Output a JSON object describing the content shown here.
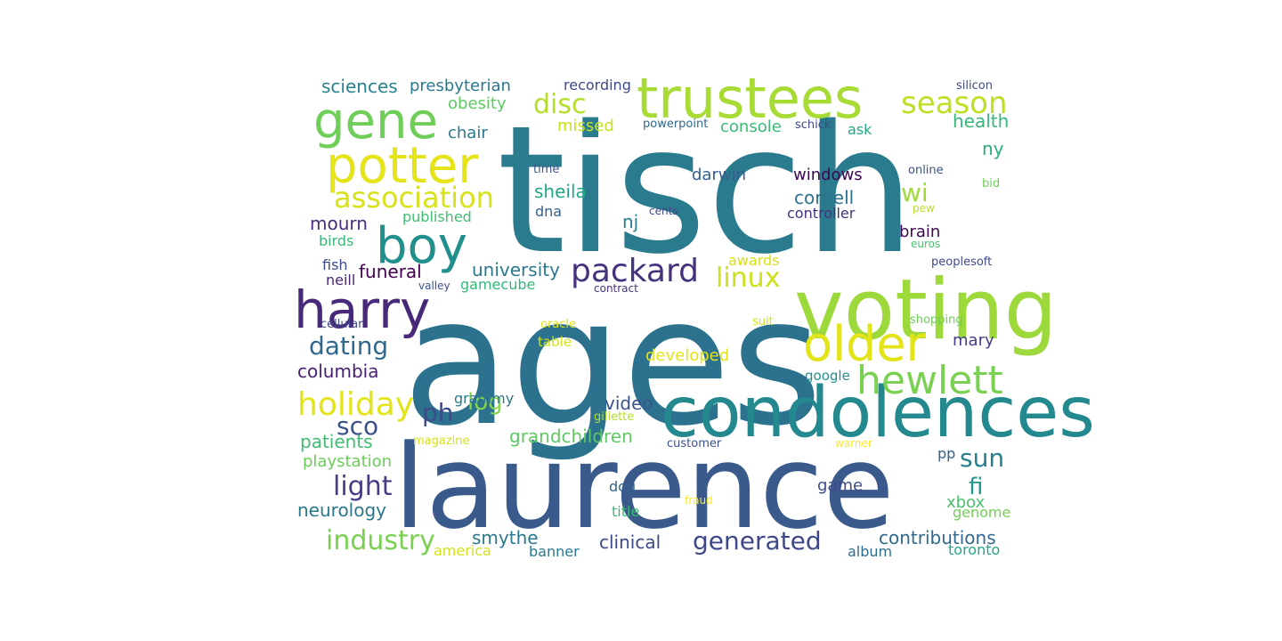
{
  "words": [
    {
      "text": "tisch",
      "color": "#2a7b8e"
    },
    {
      "text": "ages",
      "color": "#2c728e"
    },
    {
      "text": "laurence",
      "color": "#3b5a8c"
    },
    {
      "text": "voting",
      "color": "#9dd93b"
    },
    {
      "text": "condolences",
      "color": "#23898e"
    },
    {
      "text": "trustees",
      "color": "#a8db34"
    },
    {
      "text": "gene",
      "color": "#6ece58"
    },
    {
      "text": "potter",
      "color": "#e4e419"
    },
    {
      "text": "harry",
      "color": "#482878"
    },
    {
      "text": "boy",
      "color": "#21908d"
    },
    {
      "text": "older",
      "color": "#e2e418"
    },
    {
      "text": "hewlett",
      "color": "#7ad151"
    },
    {
      "text": "association",
      "color": "#d8e219"
    },
    {
      "text": "packard",
      "color": "#46337e"
    },
    {
      "text": "season",
      "color": "#bddf26"
    },
    {
      "text": "holiday",
      "color": "#e2e418"
    },
    {
      "text": "generated",
      "color": "#3f4889"
    },
    {
      "text": "industry",
      "color": "#7ad151"
    },
    {
      "text": "dating",
      "color": "#31688e"
    },
    {
      "text": "light",
      "color": "#433e85"
    },
    {
      "text": "disc",
      "color": "#b5de2b"
    },
    {
      "text": "linux",
      "color": "#cde11d"
    },
    {
      "text": "sun",
      "color": "#277f8e"
    },
    {
      "text": "sco",
      "color": "#3b528b"
    },
    {
      "text": "ph",
      "color": "#3e4a89"
    },
    {
      "text": "log",
      "color": "#86d549"
    },
    {
      "text": "wi",
      "color": "#a0da39"
    },
    {
      "text": "fi",
      "color": "#1f968b"
    },
    {
      "text": "contributions",
      "color": "#31688e"
    },
    {
      "text": "university",
      "color": "#2a788e"
    },
    {
      "text": "grandchildren",
      "color": "#5ec962"
    },
    {
      "text": "smythe",
      "color": "#2a788e"
    },
    {
      "text": "clinical",
      "color": "#3e4989"
    },
    {
      "text": "patients",
      "color": "#40bd72"
    },
    {
      "text": "neurology",
      "color": "#2a788e"
    },
    {
      "text": "mourn",
      "color": "#472d7b"
    },
    {
      "text": "columbia",
      "color": "#482173"
    },
    {
      "text": "funeral",
      "color": "#440154"
    },
    {
      "text": "sciences",
      "color": "#26828e"
    },
    {
      "text": "presbyterian",
      "color": "#2a788e"
    },
    {
      "text": "health",
      "color": "#35b779"
    },
    {
      "text": "ny",
      "color": "#29af7f"
    },
    {
      "text": "sheila",
      "color": "#22a884"
    },
    {
      "text": "cornell",
      "color": "#2c728e"
    },
    {
      "text": "windows",
      "color": "#3e0751"
    },
    {
      "text": "brain",
      "color": "#3e0751"
    },
    {
      "text": "mary",
      "color": "#433e85"
    },
    {
      "text": "video",
      "color": "#3b528b"
    },
    {
      "text": "game",
      "color": "#3e4a89"
    },
    {
      "text": "playstation",
      "color": "#6ccd5a"
    },
    {
      "text": "developed",
      "color": "#e2e418"
    },
    {
      "text": "chair",
      "color": "#2a788e"
    },
    {
      "text": "obesity",
      "color": "#5ec962"
    },
    {
      "text": "missed",
      "color": "#c8e020"
    },
    {
      "text": "console",
      "color": "#3aba76"
    },
    {
      "text": "darwin",
      "color": "#355e8d"
    },
    {
      "text": "controller",
      "color": "#46307e"
    },
    {
      "text": "nj",
      "color": "#27808e"
    },
    {
      "text": "dna",
      "color": "#33628d"
    },
    {
      "text": "published",
      "color": "#40bd72"
    },
    {
      "text": "birds",
      "color": "#3aba76"
    },
    {
      "text": "fish",
      "color": "#3e4a89"
    },
    {
      "text": "neill",
      "color": "#482475"
    },
    {
      "text": "gamecube",
      "color": "#35b779"
    },
    {
      "text": "grammy",
      "color": "#2a788e"
    },
    {
      "text": "awards",
      "color": "#d8e219"
    },
    {
      "text": "dog",
      "color": "#33638d"
    },
    {
      "text": "title",
      "color": "#3aba76"
    },
    {
      "text": "america",
      "color": "#d2e21b"
    },
    {
      "text": "banner",
      "color": "#2a788e"
    },
    {
      "text": "album",
      "color": "#2e6e8e"
    },
    {
      "text": "toronto",
      "color": "#22a884"
    },
    {
      "text": "genome",
      "color": "#73d056"
    },
    {
      "text": "xbox",
      "color": "#4ac16d"
    },
    {
      "text": "pp",
      "color": "#33628d"
    },
    {
      "text": "recording",
      "color": "#3e4a89"
    },
    {
      "text": "silicon",
      "color": "#3e4a89"
    },
    {
      "text": "ask",
      "color": "#22a884"
    },
    {
      "text": "powerpoint",
      "color": "#31688e"
    },
    {
      "text": "schick",
      "color": "#3e4a89"
    },
    {
      "text": "time",
      "color": "#3b528b"
    },
    {
      "text": "online",
      "color": "#3b528b"
    },
    {
      "text": "bid",
      "color": "#6ece58"
    },
    {
      "text": "cents",
      "color": "#3e4a89"
    },
    {
      "text": "pew",
      "color": "#b5de2b"
    },
    {
      "text": "euros",
      "color": "#4ac16d"
    },
    {
      "text": "peoplesoft",
      "color": "#3e4989"
    },
    {
      "text": "contract",
      "color": "#46337e"
    },
    {
      "text": "valley",
      "color": "#3b528b"
    },
    {
      "text": "oracle",
      "color": "#e2e418"
    },
    {
      "text": "suit",
      "color": "#d2e21b"
    },
    {
      "text": "shopping",
      "color": "#6ece58"
    },
    {
      "text": "cellular",
      "color": "#3e4a89"
    },
    {
      "text": "table",
      "color": "#d2e21b"
    },
    {
      "text": "google",
      "color": "#21908d"
    },
    {
      "text": "gillette",
      "color": "#b5de2b"
    },
    {
      "text": "magazine",
      "color": "#d2e21b"
    },
    {
      "text": "customer",
      "color": "#3b528b"
    },
    {
      "text": "warner",
      "color": "#fde725"
    },
    {
      "text": "fraud",
      "color": "#fde725"
    }
  ]
}
